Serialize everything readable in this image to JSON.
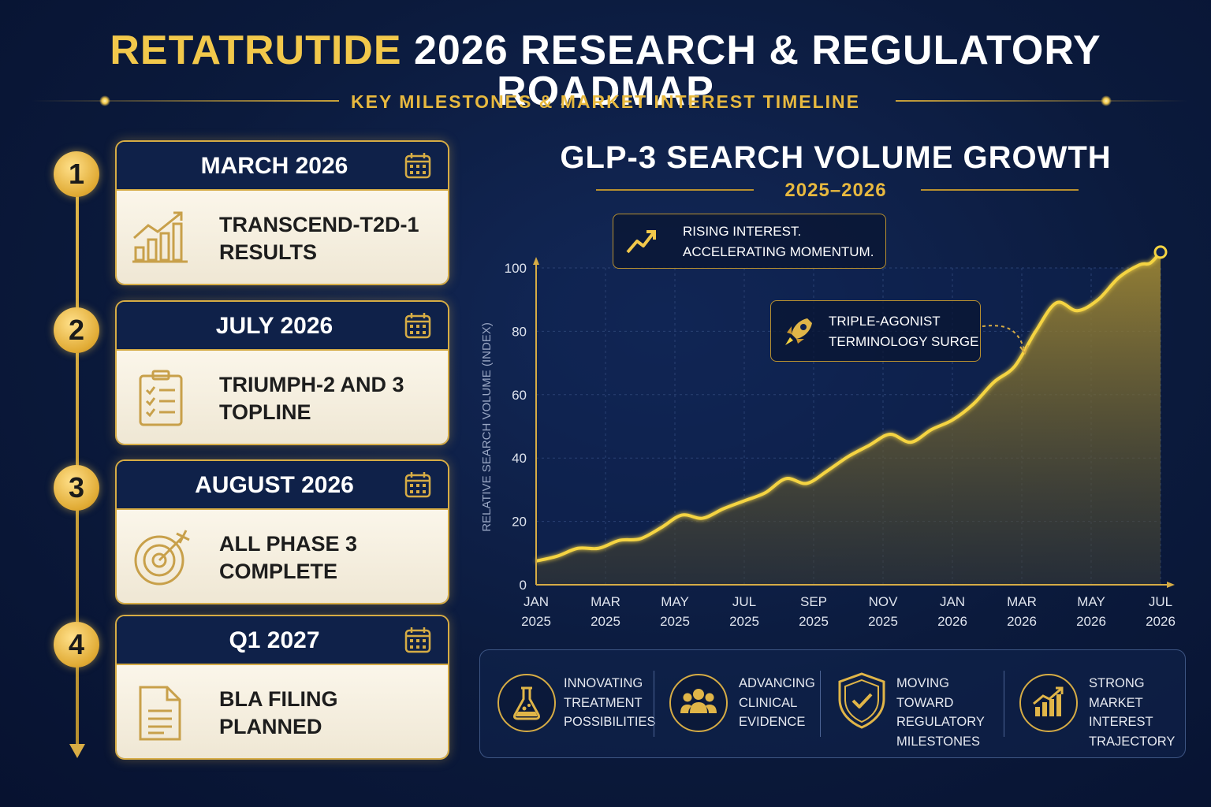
{
  "header": {
    "title_gold": "RETATRUTIDE",
    "title_white": "2026 RESEARCH & REGULATORY ROADMAP",
    "subtitle": "KEY MILESTONES & MARKET INTEREST TIMELINE"
  },
  "milestones": [
    {
      "number": "1",
      "date": "MARCH 2026",
      "text": "TRANSCEND-T2D-1\nRESULTS",
      "icon": "bar-growth-icon"
    },
    {
      "number": "2",
      "date": "JULY 2026",
      "text": "TRIUMPH-2 AND 3\nTOPLINE",
      "icon": "clipboard-checklist-icon"
    },
    {
      "number": "3",
      "date": "AUGUST 2026",
      "text": "ALL PHASE 3\nCOMPLETE",
      "icon": "target-icon"
    },
    {
      "number": "4",
      "date": "Q1 2027",
      "text": "BLA FILING\nPLANNED",
      "icon": "document-icon"
    }
  ],
  "chart": {
    "title": "GLP-3 SEARCH VOLUME GROWTH",
    "subtitle": "2025–2026",
    "callout_top": "RISING INTEREST.\nACCELERATING MOMENTUM.",
    "callout_mid": "TRIPLE-AGONIST\nTERMINOLOGY SURGE"
  },
  "chart_data": {
    "type": "area",
    "ylabel": "RELATIVE SEARCH VOLUME (INDEX)",
    "ylim": [
      0,
      100
    ],
    "yticks": [
      0,
      20,
      40,
      60,
      80,
      100
    ],
    "xlim": [
      0,
      18
    ],
    "xticks": [
      {
        "x": 0,
        "label1": "JAN",
        "label2": "2025"
      },
      {
        "x": 2,
        "label1": "MAR",
        "label2": "2025"
      },
      {
        "x": 4,
        "label1": "MAY",
        "label2": "2025"
      },
      {
        "x": 6,
        "label1": "JUL",
        "label2": "2025"
      },
      {
        "x": 8,
        "label1": "SEP",
        "label2": "2025"
      },
      {
        "x": 10,
        "label1": "NOV",
        "label2": "2025"
      },
      {
        "x": 12,
        "label1": "JAN",
        "label2": "2026"
      },
      {
        "x": 14,
        "label1": "MAR",
        "label2": "2026"
      },
      {
        "x": 16,
        "label1": "MAY",
        "label2": "2026"
      },
      {
        "x": 18,
        "label1": "JUL",
        "label2": "2026"
      }
    ],
    "grid": true,
    "colors": {
      "line": "#f5d442",
      "fill": "#8f7a2e",
      "accent": "#d6ac45"
    },
    "x": [
      0,
      0.6,
      1.2,
      1.8,
      2.4,
      3.0,
      3.6,
      4.2,
      4.8,
      5.4,
      6.0,
      6.6,
      7.2,
      7.8,
      8.4,
      9.0,
      9.6,
      10.2,
      10.8,
      11.4,
      12.0,
      12.6,
      13.2,
      13.8,
      14.4,
      15.0,
      15.6,
      16.2,
      16.8,
      17.4,
      17.7,
      18.0
    ],
    "values": [
      7.5,
      9,
      11.5,
      11.5,
      14,
      14.5,
      18,
      22,
      21,
      24,
      26.5,
      29,
      33.5,
      32,
      36,
      40.5,
      44,
      47.5,
      45,
      49,
      52,
      57,
      64,
      69,
      80,
      89,
      86.5,
      90,
      97,
      101,
      101.5,
      105
    ]
  },
  "features": [
    {
      "icon": "flask-icon",
      "text": "INNOVATING\nTREATMENT\nPOSSIBILITIES"
    },
    {
      "icon": "people-group-icon",
      "text": "ADVANCING\nCLINICAL\nEVIDENCE"
    },
    {
      "icon": "shield-check-icon",
      "text": "MOVING TOWARD\nREGULATORY\nMILESTONES"
    },
    {
      "icon": "growth-chart-icon",
      "text": "STRONG MARKET\nINTEREST\nTRAJECTORY"
    }
  ]
}
